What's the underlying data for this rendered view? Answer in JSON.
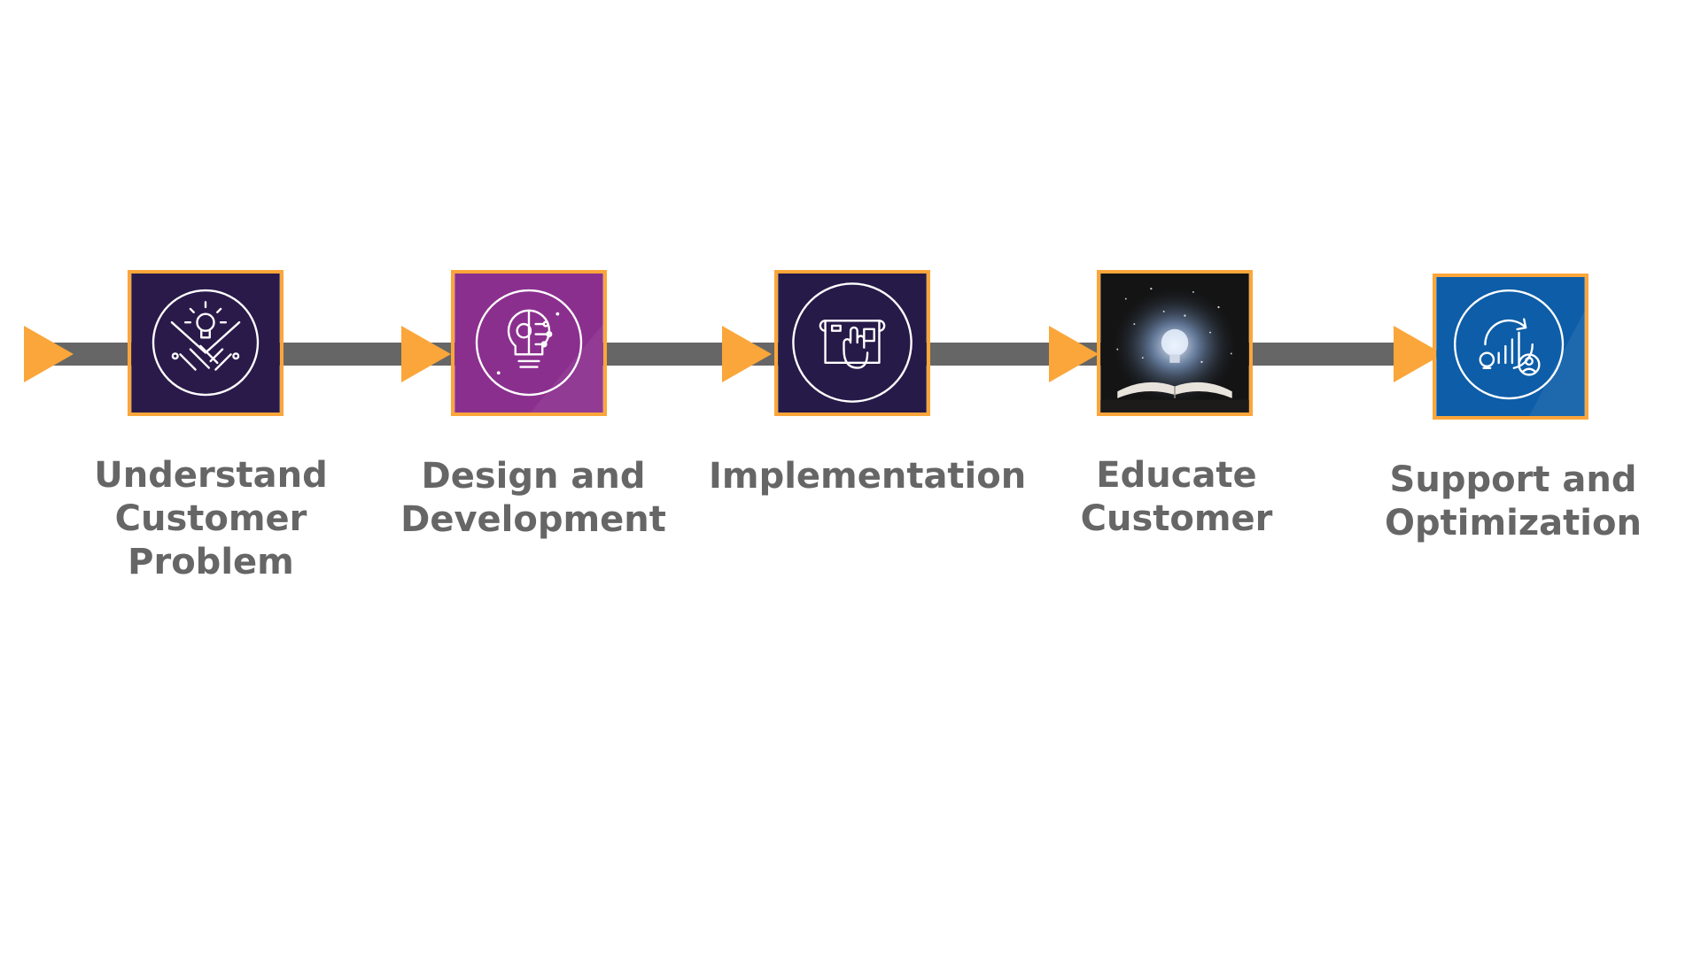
{
  "colors": {
    "accent": "#fba63a",
    "line": "#666666",
    "label": "#666666"
  },
  "steps": [
    {
      "label": "Understand\nCustomer\nProblem",
      "icon": "handshake-lightbulb-icon",
      "bg": "#2a1a4a"
    },
    {
      "label": "Design and\nDevelopment",
      "icon": "lightbulb-gear-icon",
      "bg": "#8b2f8f"
    },
    {
      "label": "Implementation",
      "icon": "blueprint-hand-icon",
      "bg": "#251a48"
    },
    {
      "label": "Educate\nCustomer",
      "icon": "book-brain-bulb-photo",
      "bg": "#141414"
    },
    {
      "label": "Support and\nOptimization",
      "icon": "analytics-support-icon",
      "bg": "#0d5da8"
    }
  ]
}
